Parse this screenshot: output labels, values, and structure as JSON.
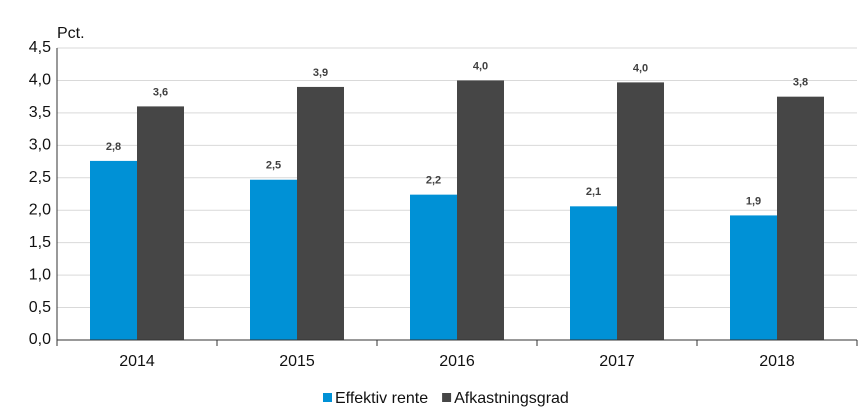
{
  "chart_data": {
    "type": "bar",
    "ylabel": "Pct.",
    "categories": [
      "2014",
      "2015",
      "2016",
      "2017",
      "2018"
    ],
    "series": [
      {
        "name": "Effektiv rente",
        "color": "#0091d6",
        "values": [
          2.76,
          2.47,
          2.24,
          2.06,
          1.92
        ],
        "value_labels": [
          "2,8",
          "2,5",
          "2,2",
          "2,1",
          "1,9"
        ]
      },
      {
        "name": "Afkastningsgrad",
        "color": "#464646",
        "values": [
          3.6,
          3.9,
          4.0,
          3.97,
          3.75
        ],
        "value_labels": [
          "3,6",
          "3,9",
          "4,0",
          "4,0",
          "3,8"
        ]
      }
    ],
    "ylim": [
      0,
      4.5
    ],
    "yticks": [
      {
        "value": 0,
        "label": "0,0"
      },
      {
        "value": 0.5,
        "label": "0,5"
      },
      {
        "value": 1,
        "label": "1,0"
      },
      {
        "value": 1.5,
        "label": "1,5"
      },
      {
        "value": 2,
        "label": "2,0"
      },
      {
        "value": 2.5,
        "label": "2,5"
      },
      {
        "value": 3,
        "label": "3,0"
      },
      {
        "value": 3.5,
        "label": "3,5"
      },
      {
        "value": 4,
        "label": "4,0"
      },
      {
        "value": 4.5,
        "label": "4,5"
      }
    ],
    "grid": true,
    "legend": "bottom"
  }
}
